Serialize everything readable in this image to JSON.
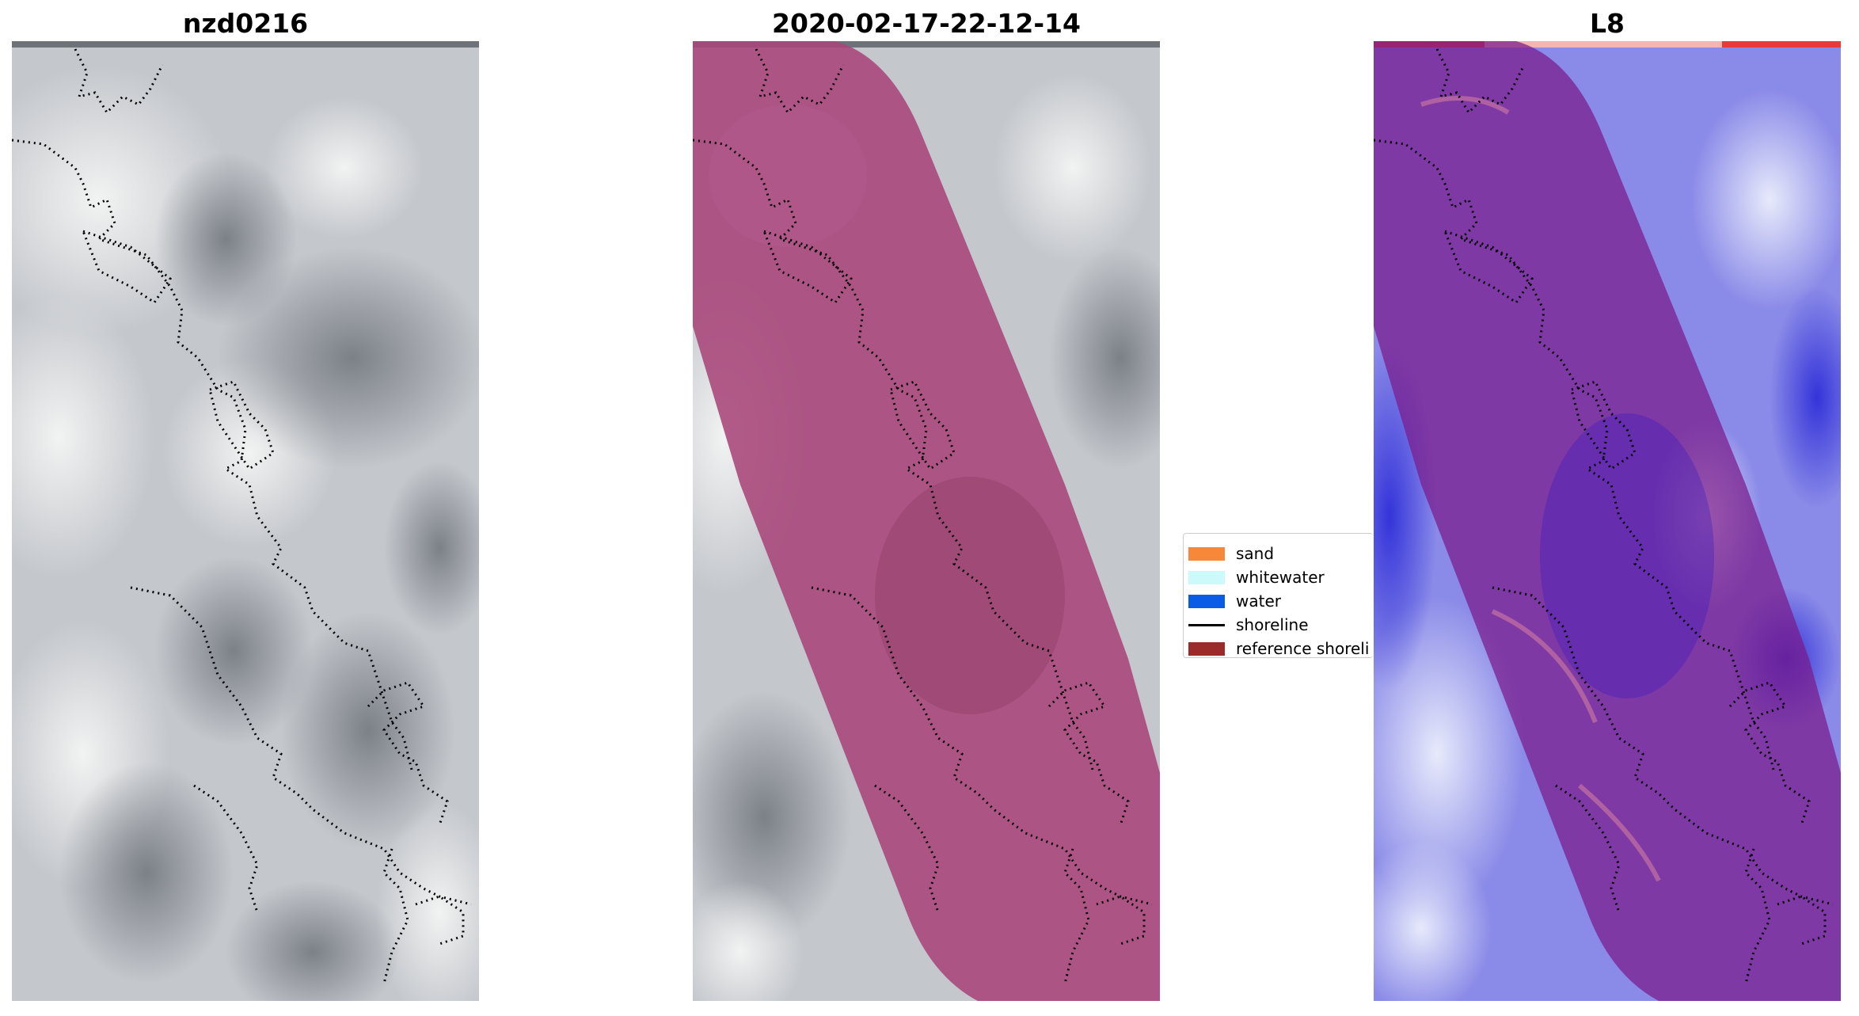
{
  "panels": [
    {
      "title": "nzd0216",
      "kind": "rgb"
    },
    {
      "title": "2020-02-17-22-12-14",
      "kind": "classified"
    },
    {
      "title": "L8",
      "kind": "ndwi"
    }
  ],
  "legend": {
    "items": [
      {
        "label": "sand",
        "type": "patch",
        "color": "#f7883a"
      },
      {
        "label": "whitewater",
        "type": "patch",
        "color": "#ccfafa"
      },
      {
        "label": "water",
        "type": "patch",
        "color": "#0a5ce6"
      },
      {
        "label": "shoreline",
        "type": "line",
        "color": "#000000"
      },
      {
        "label": "reference shoreli",
        "type": "patch",
        "color": "#9b2a2a"
      }
    ]
  },
  "colors": {
    "overlay": "#a8457a",
    "overlay_ndwi": "#7a1a8a",
    "gray_bar": "#6e737a",
    "ndwi_bar": "#e83a3a",
    "ndwi_base": "#7e7ee6",
    "rgb_base": "#c7c9cd"
  }
}
